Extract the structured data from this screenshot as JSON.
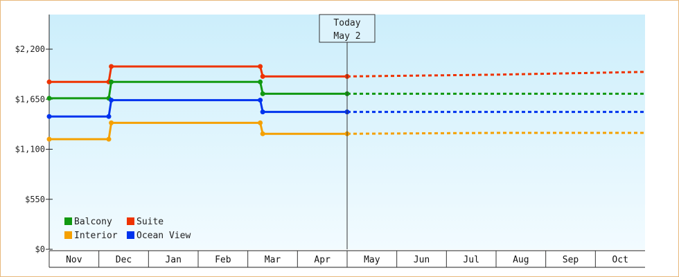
{
  "chart_data": {
    "type": "line",
    "step": true,
    "x_months": [
      "Nov",
      "Dec",
      "Jan",
      "Feb",
      "Mar",
      "Apr",
      "May",
      "Jun",
      "Jul",
      "Aug",
      "Sep",
      "Oct"
    ],
    "yticks": [
      "$0",
      "$550",
      "$1,100",
      "$1,650",
      "$2,200"
    ],
    "ylim": [
      0,
      2200
    ],
    "today": {
      "line1": "Today",
      "line2": "May 2",
      "month_pos": 6.0
    },
    "legend_placement": "bottom-left",
    "series": [
      {
        "name": "Suite",
        "color": "#ee3300",
        "actual": [
          [
            0,
            1840
          ],
          [
            1.2,
            1840
          ],
          [
            1.25,
            2010
          ],
          [
            4.25,
            2010
          ],
          [
            4.3,
            1900
          ],
          [
            6.0,
            1900
          ]
        ],
        "forecast": [
          [
            6.0,
            1900
          ],
          [
            9.0,
            1920
          ],
          [
            12.0,
            1950
          ]
        ]
      },
      {
        "name": "Balcony",
        "color": "#119911",
        "actual": [
          [
            0,
            1660
          ],
          [
            1.2,
            1660
          ],
          [
            1.25,
            1840
          ],
          [
            4.25,
            1840
          ],
          [
            4.3,
            1710
          ],
          [
            6.0,
            1710
          ]
        ],
        "forecast": [
          [
            6.0,
            1710
          ],
          [
            12.0,
            1710
          ]
        ]
      },
      {
        "name": "Ocean View",
        "color": "#0033ee",
        "actual": [
          [
            0,
            1460
          ],
          [
            1.2,
            1460
          ],
          [
            1.25,
            1640
          ],
          [
            4.25,
            1640
          ],
          [
            4.3,
            1510
          ],
          [
            6.0,
            1510
          ]
        ],
        "forecast": [
          [
            6.0,
            1510
          ],
          [
            12.0,
            1510
          ]
        ]
      },
      {
        "name": "Interior",
        "color": "#f5a000",
        "actual": [
          [
            0,
            1210
          ],
          [
            1.2,
            1210
          ],
          [
            1.25,
            1390
          ],
          [
            4.25,
            1390
          ],
          [
            4.3,
            1270
          ],
          [
            6.0,
            1270
          ]
        ],
        "forecast": [
          [
            6.0,
            1270
          ],
          [
            9.0,
            1280
          ],
          [
            12.0,
            1280
          ]
        ]
      }
    ],
    "legend_order": [
      "Balcony",
      "Suite",
      "Interior",
      "Ocean View"
    ]
  }
}
